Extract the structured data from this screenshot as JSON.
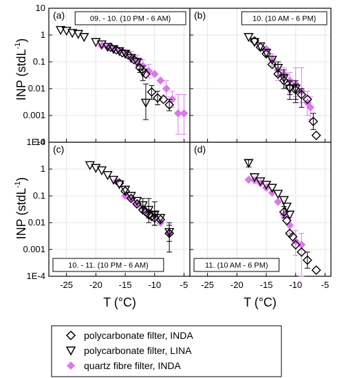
{
  "colors": {
    "quartz": "#dd77ee",
    "grid": "#e4e4e4",
    "axis": "#000000"
  },
  "chart_data": {
    "type": "scatter",
    "layout": "2x2 panels",
    "ylabel": "INP (stdL",
    "ylabel_sup": "-1",
    "ylabel_close": ")",
    "xlabel": "T (°C)",
    "yscale": "log",
    "ylim": [
      0.0001,
      10
    ],
    "xlim": [
      -28,
      -4
    ],
    "grid": true,
    "y_ticks": [
      {
        "value": 10,
        "label": "10"
      },
      {
        "value": 1,
        "label": "1"
      },
      {
        "value": 0.1,
        "label": "0.1"
      },
      {
        "value": 0.01,
        "label": "0.01"
      },
      {
        "value": 0.001,
        "label": "0.001"
      },
      {
        "value": 0.0001,
        "label": "1E-4"
      }
    ],
    "x_ticks": [
      {
        "value": -25,
        "label": "-25"
      },
      {
        "value": -20,
        "label": "-20"
      },
      {
        "value": -15,
        "label": "-15"
      },
      {
        "value": -10,
        "label": "-10"
      },
      {
        "value": -5,
        "label": "-5"
      }
    ],
    "legend": {
      "position": "bottom",
      "entries": [
        {
          "marker": "diamond-open",
          "label": "polycarbonate filter, INDA"
        },
        {
          "marker": "triangle-down-open",
          "label": "polycarbonate filter, LINA"
        },
        {
          "marker": "diamond-filled",
          "label": "quartz fibre filter, INDA"
        }
      ]
    },
    "panels": [
      {
        "letter": "(a)",
        "label": "09. - 10. (10 PM - 6 AM)",
        "label_position": "top",
        "series": {
          "inda_pc": [
            {
              "x": -17.5,
              "y": 0.35
            },
            {
              "x": -16.5,
              "y": 0.28
            },
            {
              "x": -15.5,
              "y": 0.22
            },
            {
              "x": -14.5,
              "y": 0.18
            },
            {
              "x": -13.5,
              "y": 0.12
            },
            {
              "x": -12.5,
              "y": 0.06,
              "elo": 0.04,
              "ehi": 0.12
            },
            {
              "x": -11.5,
              "y": 0.035
            },
            {
              "x": -10.5,
              "y": 0.0075,
              "elo": 0.004,
              "ehi": 0.013
            },
            {
              "x": -9.5,
              "y": 0.0045,
              "elo": 0.0025,
              "ehi": 0.008
            },
            {
              "x": -8.5,
              "y": 0.004
            },
            {
              "x": -7.5,
              "y": 0.0025,
              "elo": 0.0015,
              "ehi": 0.004
            }
          ],
          "lina": [
            {
              "x": -26,
              "y": 1.55
            },
            {
              "x": -25,
              "y": 1.45
            },
            {
              "x": -24,
              "y": 1.2
            },
            {
              "x": -23,
              "y": 1.1
            },
            {
              "x": -22,
              "y": 0.85
            },
            {
              "x": -20,
              "y": 0.55
            },
            {
              "x": -19,
              "y": 0.45
            },
            {
              "x": -18,
              "y": 0.36
            },
            {
              "x": -17,
              "y": 0.3
            },
            {
              "x": -16,
              "y": 0.25
            },
            {
              "x": -15,
              "y": 0.2
            },
            {
              "x": -14,
              "y": 0.14
            },
            {
              "x": -13,
              "y": 0.1
            },
            {
              "x": -12,
              "y": 0.04,
              "elo": 0.02,
              "ehi": 0.07
            },
            {
              "x": -11.5,
              "y": 0.003,
              "elo": 0.0007,
              "ehi": 0.015
            }
          ],
          "quartz": [
            {
              "x": -19,
              "y": 0.4
            },
            {
              "x": -18,
              "y": 0.35
            },
            {
              "x": -17,
              "y": 0.3
            },
            {
              "x": -16,
              "y": 0.26
            },
            {
              "x": -15,
              "y": 0.22
            },
            {
              "x": -14,
              "y": 0.15,
              "elo": 0.1,
              "ehi": 0.25
            },
            {
              "x": -13,
              "y": 0.11,
              "elo": 0.07,
              "ehi": 0.18
            },
            {
              "x": -12,
              "y": 0.07,
              "elo": 0.04,
              "ehi": 0.12
            },
            {
              "x": -11,
              "y": 0.045,
              "elo": 0.025,
              "ehi": 0.08
            },
            {
              "x": -10,
              "y": 0.035
            },
            {
              "x": -9,
              "y": 0.02
            },
            {
              "x": -8,
              "y": 0.01,
              "elo": 0.005,
              "ehi": 0.02
            },
            {
              "x": -7,
              "y": 0.004,
              "elo": 0.002,
              "ehi": 0.008
            },
            {
              "x": -6,
              "y": 0.0012,
              "elo": 0.0002,
              "ehi": 0.006
            },
            {
              "x": -5,
              "y": 0.0012,
              "elo": 0.0002,
              "ehi": 0.006
            }
          ]
        }
      },
      {
        "letter": "(b)",
        "label": "10. (10 AM - 6 PM)",
        "label_position": "top",
        "series": {
          "inda_pc": [
            {
              "x": -17,
              "y": 0.6
            },
            {
              "x": -16,
              "y": 0.35
            },
            {
              "x": -15,
              "y": 0.2
            },
            {
              "x": -14,
              "y": 0.08
            },
            {
              "x": -13,
              "y": 0.035
            },
            {
              "x": -12,
              "y": 0.02,
              "elo": 0.01,
              "ehi": 0.03
            },
            {
              "x": -11,
              "y": 0.011,
              "elo": 0.006,
              "ehi": 0.018
            },
            {
              "x": -10,
              "y": 0.009,
              "elo": 0.004,
              "ehi": 0.015
            },
            {
              "x": -9,
              "y": 0.006,
              "elo": 0.002,
              "ehi": 0.01
            },
            {
              "x": -8,
              "y": 0.004
            },
            {
              "x": -7,
              "y": 0.0006,
              "elo": 0.0003,
              "ehi": 0.0012
            },
            {
              "x": -6.5,
              "y": 0.00018
            }
          ],
          "lina": [
            {
              "x": -18,
              "y": 0.85
            },
            {
              "x": -17,
              "y": 0.55
            },
            {
              "x": -16,
              "y": 0.38
            },
            {
              "x": -15,
              "y": 0.22
            },
            {
              "x": -14,
              "y": 0.12
            },
            {
              "x": -13,
              "y": 0.06,
              "elo": 0.03,
              "ehi": 0.1
            },
            {
              "x": -12,
              "y": 0.025,
              "elo": 0.01,
              "ehi": 0.05
            },
            {
              "x": -11,
              "y": 0.01,
              "elo": 0.004,
              "ehi": 0.02
            },
            {
              "x": -10,
              "y": 0.01,
              "elo": 0.003,
              "ehi": 0.02
            }
          ],
          "quartz": [
            {
              "x": -15,
              "y": 0.3
            },
            {
              "x": -14,
              "y": 0.12,
              "elo": 0.07,
              "ehi": 0.2
            },
            {
              "x": -13,
              "y": 0.05,
              "elo": 0.02,
              "ehi": 0.1
            },
            {
              "x": -12,
              "y": 0.035,
              "elo": 0.015,
              "ehi": 0.06
            },
            {
              "x": -11,
              "y": 0.02,
              "elo": 0.007,
              "ehi": 0.04
            },
            {
              "x": -10,
              "y": 0.015,
              "elo": 0.005,
              "ehi": 0.06
            },
            {
              "x": -9,
              "y": 0.008,
              "elo": 0.003,
              "ehi": 0.06
            },
            {
              "x": -8,
              "y": 0.003,
              "elo": 0.001,
              "ehi": 0.008
            },
            {
              "x": -7.5,
              "y": 0.002,
              "elo": 0.0007,
              "ehi": 0.005
            }
          ]
        }
      },
      {
        "letter": "(c)",
        "label": "10. - 11. (10 PM - 6 AM)",
        "label_position": "bottom",
        "series": {
          "inda_pc": [
            {
              "x": -16,
              "y": 0.3
            },
            {
              "x": -15,
              "y": 0.15
            },
            {
              "x": -14,
              "y": 0.08
            },
            {
              "x": -13,
              "y": 0.05
            },
            {
              "x": -12,
              "y": 0.03
            },
            {
              "x": -11.5,
              "y": 0.025
            },
            {
              "x": -11,
              "y": 0.02,
              "elo": 0.01,
              "ehi": 0.03
            },
            {
              "x": -10.5,
              "y": 0.017
            },
            {
              "x": -10,
              "y": 0.015,
              "elo": 0.008,
              "ehi": 0.025
            },
            {
              "x": -9,
              "y": 0.013
            },
            {
              "x": -7.5,
              "y": 0.004,
              "elo": 0.002,
              "ehi": 0.008
            }
          ],
          "lina": [
            {
              "x": -21,
              "y": 1.4
            },
            {
              "x": -20,
              "y": 1.1
            },
            {
              "x": -19,
              "y": 0.9
            },
            {
              "x": -18,
              "y": 0.6
            },
            {
              "x": -17,
              "y": 0.4
            },
            {
              "x": -16,
              "y": 0.27
            },
            {
              "x": -15,
              "y": 0.17
            },
            {
              "x": -14,
              "y": 0.1
            },
            {
              "x": -13,
              "y": 0.065
            },
            {
              "x": -12,
              "y": 0.045,
              "elo": 0.025,
              "ehi": 0.08
            },
            {
              "x": -11,
              "y": 0.03,
              "elo": 0.015,
              "ehi": 0.08
            },
            {
              "x": -10,
              "y": 0.02,
              "elo": 0.008,
              "ehi": 0.06
            },
            {
              "x": -9,
              "y": 0.015
            },
            {
              "x": -7.5,
              "y": 0.0045,
              "elo": 0.0008,
              "ehi": 0.01
            }
          ],
          "quartz": [
            {
              "x": -16.5,
              "y": 0.35
            },
            {
              "x": -15,
              "y": 0.1
            },
            {
              "x": -14,
              "y": 0.08
            },
            {
              "x": -13,
              "y": 0.05
            },
            {
              "x": -12,
              "y": 0.035
            },
            {
              "x": -11,
              "y": 0.025
            },
            {
              "x": -10,
              "y": 0.018
            },
            {
              "x": -9,
              "y": 0.01
            },
            {
              "x": -7.5,
              "y": 0.004
            }
          ]
        }
      },
      {
        "letter": "(d)",
        "label": "11. (10 AM - 6 PM)",
        "label_position": "bottom",
        "series": {
          "inda_pc": [
            {
              "x": -12,
              "y": 0.025,
              "elo": 0.015,
              "ehi": 0.04
            },
            {
              "x": -11.5,
              "y": 0.012
            },
            {
              "x": -11,
              "y": 0.004
            },
            {
              "x": -10.5,
              "y": 0.003
            },
            {
              "x": -10,
              "y": 0.0015
            },
            {
              "x": -9,
              "y": 0.0008
            },
            {
              "x": -8,
              "y": 0.0004,
              "elo": 0.0002,
              "ehi": 0.0008
            },
            {
              "x": -6.5,
              "y": 0.00017
            }
          ],
          "lina": [
            {
              "x": -18,
              "y": 1.7,
              "elo": 1.2,
              "ehi": 2.2
            },
            {
              "x": -17,
              "y": 0.5
            },
            {
              "x": -16,
              "y": 0.35
            },
            {
              "x": -15,
              "y": 0.26
            },
            {
              "x": -14,
              "y": 0.2
            },
            {
              "x": -13,
              "y": 0.12
            },
            {
              "x": -12,
              "y": 0.07
            },
            {
              "x": -11.5,
              "y": 0.04
            },
            {
              "x": -11,
              "y": 0.02
            }
          ],
          "quartz": [
            {
              "x": -18,
              "y": 0.4
            },
            {
              "x": -17,
              "y": 0.38
            },
            {
              "x": -16,
              "y": 0.3
            },
            {
              "x": -15,
              "y": 0.2
            },
            {
              "x": -14,
              "y": 0.13
            },
            {
              "x": -13,
              "y": 0.06
            },
            {
              "x": -12,
              "y": 0.02
            },
            {
              "x": -11,
              "y": 0.008,
              "elo": 0.004,
              "ehi": 0.015
            },
            {
              "x": -10,
              "y": 0.002,
              "elo": 0.0006,
              "ehi": 0.005
            },
            {
              "x": -9,
              "y": 0.0015,
              "elo": 0.0001,
              "ehi": 0.004
            }
          ]
        }
      }
    ]
  }
}
